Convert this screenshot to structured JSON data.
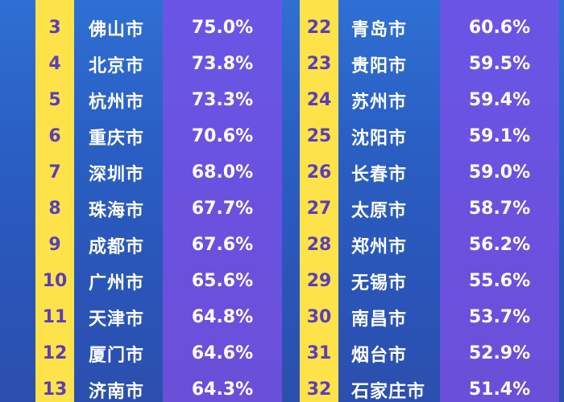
{
  "left_table": [
    {
      "rank": "3",
      "city": "佛山市",
      "value": "75.0%"
    },
    {
      "rank": "4",
      "city": "北京市",
      "value": "73.8%"
    },
    {
      "rank": "5",
      "city": "杭州市",
      "value": "73.3%"
    },
    {
      "rank": "6",
      "city": "重庆市",
      "value": "70.6%"
    },
    {
      "rank": "7",
      "city": "深圳市",
      "value": "68.0%"
    },
    {
      "rank": "8",
      "city": "珠海市",
      "value": "67.7%"
    },
    {
      "rank": "9",
      "city": "成都市",
      "value": "67.6%"
    },
    {
      "rank": "10",
      "city": "广州市",
      "value": "65.6%"
    },
    {
      "rank": "11",
      "city": "天津市",
      "value": "64.8%"
    },
    {
      "rank": "12",
      "city": "厦门市",
      "value": "64.6%"
    },
    {
      "rank": "13",
      "city": "济南市",
      "value": "64.3%"
    }
  ],
  "right_table": [
    {
      "rank": "22",
      "city": "青岛市",
      "value": "60.6%"
    },
    {
      "rank": "23",
      "city": "贵阳市",
      "value": "59.5%"
    },
    {
      "rank": "24",
      "city": "苏州市",
      "value": "59.4%"
    },
    {
      "rank": "25",
      "city": "沈阳市",
      "value": "59.1%"
    },
    {
      "rank": "26",
      "city": "长春市",
      "value": "59.0%"
    },
    {
      "rank": "27",
      "city": "太原市",
      "value": "58.7%"
    },
    {
      "rank": "28",
      "city": "郑州市",
      "value": "56.2%"
    },
    {
      "rank": "29",
      "city": "无锡市",
      "value": "55.6%"
    },
    {
      "rank": "30",
      "city": "南昌市",
      "value": "53.7%"
    },
    {
      "rank": "31",
      "city": "烟台市",
      "value": "52.9%"
    },
    {
      "rank": "32",
      "city": "石家庄市",
      "value": "51.4%"
    }
  ],
  "colors": {
    "rank_column": "#fde24a",
    "value_column": "#6a55e6",
    "rank_text": "#5a3fb8",
    "background": "#2a5fc4"
  }
}
